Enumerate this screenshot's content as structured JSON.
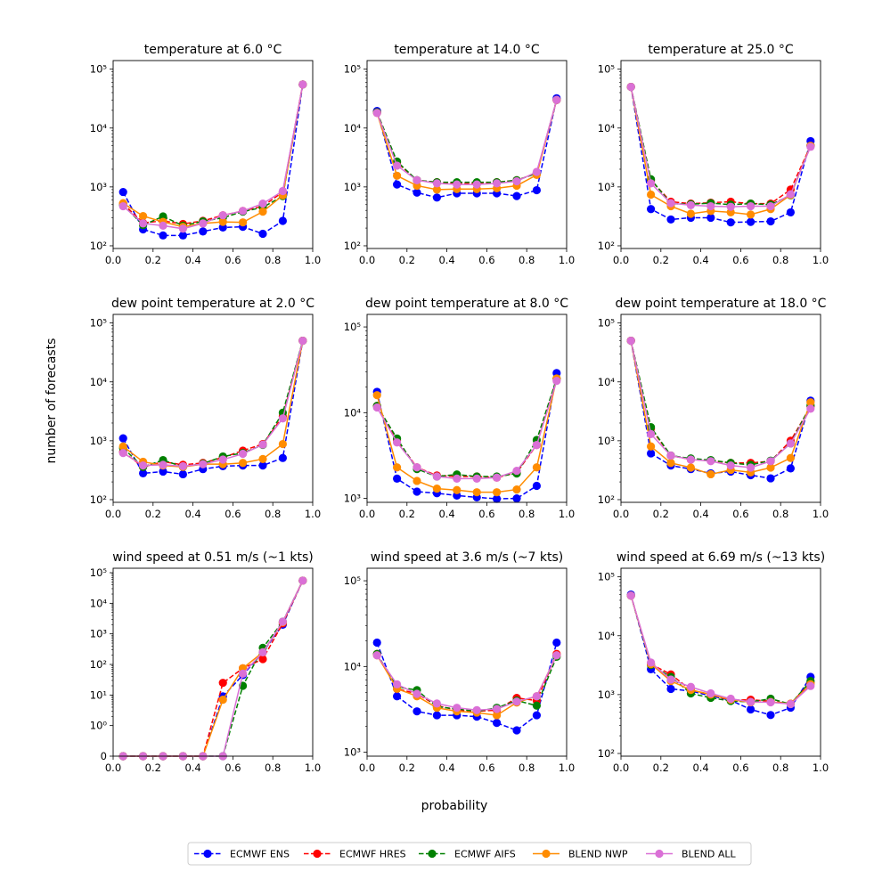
{
  "figure": {
    "xlabel": "probability",
    "ylabel": "number of forecasts"
  },
  "legend": [
    {
      "name": "ECMWF ENS",
      "color": "#0000ff",
      "style": "dashed"
    },
    {
      "name": "ECMWF HRES",
      "color": "#ff0000",
      "style": "dashed"
    },
    {
      "name": "ECMWF AIFS",
      "color": "#008000",
      "style": "dashed"
    },
    {
      "name": "BLEND NWP",
      "color": "#ff8c00",
      "style": "solid"
    },
    {
      "name": "BLEND ALL",
      "color": "#da70d6",
      "style": "solid"
    }
  ],
  "chart_data": [
    {
      "type": "line",
      "title": "temperature at 6.0 °C",
      "yscale": "log",
      "x": [
        0.05,
        0.15,
        0.25,
        0.35,
        0.45,
        0.55,
        0.65,
        0.75,
        0.85,
        0.95
      ],
      "xlim": [
        0.0,
        1.0
      ],
      "xticks": [
        "0.0",
        "0.2",
        "0.4",
        "0.6",
        "0.8",
        "1.0"
      ],
      "ylim": [
        90,
        140000
      ],
      "yticks": [
        100,
        1000,
        10000,
        100000
      ],
      "series": [
        {
          "name": "ECMWF ENS",
          "values": [
            820,
            190,
            150,
            150,
            175,
            205,
            210,
            160,
            265,
            55000
          ]
        },
        {
          "name": "ECMWF HRES",
          "values": [
            520,
            245,
            265,
            235,
            265,
            330,
            390,
            470,
            820,
            55000
          ]
        },
        {
          "name": "ECMWF AIFS",
          "values": [
            490,
            225,
            315,
            220,
            260,
            300,
            380,
            450,
            700,
            55000
          ]
        },
        {
          "name": "BLEND NWP",
          "values": [
            530,
            320,
            255,
            210,
            240,
            255,
            250,
            380,
            720,
            55000
          ]
        },
        {
          "name": "BLEND ALL",
          "values": [
            470,
            240,
            220,
            195,
            240,
            330,
            390,
            520,
            850,
            55000
          ]
        }
      ]
    },
    {
      "type": "line",
      "title": "temperature at 14.0 °C",
      "yscale": "log",
      "x": [
        0.05,
        0.15,
        0.25,
        0.35,
        0.45,
        0.55,
        0.65,
        0.75,
        0.85,
        0.95
      ],
      "xlim": [
        0.0,
        1.0
      ],
      "xticks": [
        "0.0",
        "0.2",
        "0.4",
        "0.6",
        "0.8",
        "1.0"
      ],
      "ylim": [
        90,
        140000
      ],
      "yticks": [
        100,
        1000,
        10000,
        100000
      ],
      "series": [
        {
          "name": "ECMWF ENS",
          "values": [
            19500,
            1100,
            800,
            660,
            780,
            780,
            780,
            700,
            880,
            32000
          ]
        },
        {
          "name": "ECMWF HRES",
          "values": [
            18500,
            2600,
            1300,
            1200,
            1150,
            1150,
            1200,
            1300,
            1700,
            30000
          ]
        },
        {
          "name": "ECMWF AIFS",
          "values": [
            18500,
            2700,
            1300,
            1200,
            1200,
            1200,
            1200,
            1300,
            1700,
            30000
          ]
        },
        {
          "name": "BLEND NWP",
          "values": [
            18000,
            1550,
            1050,
            900,
            920,
            920,
            950,
            1050,
            1600,
            30000
          ]
        },
        {
          "name": "BLEND ALL",
          "values": [
            18000,
            2300,
            1300,
            1150,
            1100,
            1100,
            1150,
            1250,
            1800,
            30000
          ]
        }
      ]
    },
    {
      "type": "line",
      "title": "temperature at 25.0 °C",
      "yscale": "log",
      "x": [
        0.05,
        0.15,
        0.25,
        0.35,
        0.45,
        0.55,
        0.65,
        0.75,
        0.85,
        0.95
      ],
      "xlim": [
        0.0,
        1.0
      ],
      "xticks": [
        "0.0",
        "0.2",
        "0.4",
        "0.6",
        "0.8",
        "1.0"
      ],
      "ylim": [
        90,
        140000
      ],
      "yticks": [
        100,
        1000,
        10000,
        100000
      ],
      "series": [
        {
          "name": "ECMWF ENS",
          "values": [
            50000,
            420,
            280,
            300,
            300,
            250,
            255,
            260,
            370,
            6000
          ]
        },
        {
          "name": "ECMWF HRES",
          "values": [
            50000,
            1300,
            560,
            520,
            540,
            560,
            520,
            520,
            900,
            5000
          ]
        },
        {
          "name": "ECMWF AIFS",
          "values": [
            50000,
            1350,
            520,
            510,
            530,
            500,
            520,
            500,
            720,
            5000
          ]
        },
        {
          "name": "BLEND NWP",
          "values": [
            50000,
            740,
            470,
            350,
            390,
            370,
            340,
            420,
            730,
            5000
          ]
        },
        {
          "name": "BLEND ALL",
          "values": [
            50000,
            1150,
            530,
            490,
            470,
            460,
            470,
            470,
            750,
            4800
          ]
        }
      ]
    },
    {
      "type": "line",
      "title": "dew point temperature at 2.0 °C",
      "yscale": "log",
      "x": [
        0.05,
        0.15,
        0.25,
        0.35,
        0.45,
        0.55,
        0.65,
        0.75,
        0.85,
        0.95
      ],
      "xlim": [
        0.0,
        1.0
      ],
      "xticks": [
        "0.0",
        "0.2",
        "0.4",
        "0.6",
        "0.8",
        "1.0"
      ],
      "ylim": [
        90,
        140000
      ],
      "yticks": [
        100,
        1000,
        10000,
        100000
      ],
      "series": [
        {
          "name": "ECMWF ENS",
          "values": [
            1100,
            280,
            300,
            270,
            330,
            370,
            380,
            380,
            510,
            50000
          ]
        },
        {
          "name": "ECMWF HRES",
          "values": [
            650,
            360,
            440,
            390,
            420,
            520,
            680,
            880,
            2600,
            50000
          ]
        },
        {
          "name": "ECMWF AIFS",
          "values": [
            750,
            360,
            470,
            360,
            410,
            540,
            620,
            850,
            3000,
            50000
          ]
        },
        {
          "name": "BLEND NWP",
          "values": [
            800,
            440,
            380,
            360,
            400,
            400,
            420,
            490,
            880,
            50000
          ]
        },
        {
          "name": "BLEND ALL",
          "values": [
            620,
            380,
            390,
            370,
            400,
            480,
            600,
            860,
            2400,
            50000
          ]
        }
      ]
    },
    {
      "type": "line",
      "title": "dew point temperature at 8.0 °C",
      "yscale": "log",
      "x": [
        0.05,
        0.15,
        0.25,
        0.35,
        0.45,
        0.55,
        0.65,
        0.75,
        0.85,
        0.95
      ],
      "xlim": [
        0.0,
        1.0
      ],
      "xticks": [
        "0.0",
        "0.2",
        "0.4",
        "0.6",
        "0.8",
        "1.0"
      ],
      "ylim": [
        900,
        140000
      ],
      "yticks": [
        1000,
        10000,
        100000
      ],
      "series": [
        {
          "name": "ECMWF ENS",
          "values": [
            17500,
            1700,
            1200,
            1150,
            1080,
            1030,
            990,
            1000,
            1400,
            29000
          ]
        },
        {
          "name": "ECMWF HRES",
          "values": [
            12000,
            4800,
            2300,
            1850,
            1800,
            1800,
            1750,
            2000,
            4200,
            25000
          ]
        },
        {
          "name": "ECMWF AIFS",
          "values": [
            12000,
            5000,
            2200,
            1800,
            1900,
            1800,
            1800,
            1950,
            4800,
            25000
          ]
        },
        {
          "name": "BLEND NWP",
          "values": [
            16000,
            2300,
            1600,
            1300,
            1250,
            1180,
            1180,
            1270,
            2300,
            25000
          ]
        },
        {
          "name": "BLEND ALL",
          "values": [
            11500,
            4500,
            2300,
            1800,
            1700,
            1700,
            1750,
            2100,
            4200,
            23500
          ]
        }
      ]
    },
    {
      "type": "line",
      "title": "dew point temperature at 18.0 °C",
      "yscale": "log",
      "x": [
        0.05,
        0.15,
        0.25,
        0.35,
        0.45,
        0.55,
        0.65,
        0.75,
        0.85,
        0.95
      ],
      "xlim": [
        0.0,
        1.0
      ],
      "xticks": [
        "0.0",
        "0.2",
        "0.4",
        "0.6",
        "0.8",
        "1.0"
      ],
      "ylim": [
        90,
        140000
      ],
      "yticks": [
        100,
        1000,
        10000,
        100000
      ],
      "series": [
        {
          "name": "ECMWF ENS",
          "values": [
            50000,
            610,
            380,
            330,
            280,
            300,
            260,
            230,
            340,
            4800
          ]
        },
        {
          "name": "ECMWF HRES",
          "values": [
            50000,
            1600,
            560,
            480,
            460,
            420,
            420,
            450,
            1000,
            3800
          ]
        },
        {
          "name": "ECMWF AIFS",
          "values": [
            50000,
            1700,
            560,
            500,
            470,
            420,
            390,
            460,
            900,
            4000
          ]
        },
        {
          "name": "BLEND NWP",
          "values": [
            50000,
            800,
            420,
            350,
            270,
            320,
            290,
            350,
            510,
            4500
          ]
        },
        {
          "name": "BLEND ALL",
          "values": [
            50000,
            1300,
            560,
            480,
            450,
            380,
            350,
            450,
            900,
            3500
          ]
        }
      ]
    },
    {
      "type": "line",
      "title": "wind speed at 0.51 m/s (~1 kts)",
      "yscale": "symlog",
      "x": [
        0.05,
        0.15,
        0.25,
        0.35,
        0.45,
        0.55,
        0.65,
        0.75,
        0.85,
        0.95
      ],
      "xlim": [
        0.0,
        1.0
      ],
      "xticks": [
        "0.0",
        "0.2",
        "0.4",
        "0.6",
        "0.8",
        "1.0"
      ],
      "ylim": [
        0,
        140000
      ],
      "yticks": [
        0,
        1,
        10,
        100,
        1000,
        10000,
        100000
      ],
      "series": [
        {
          "name": "ECMWF ENS",
          "values": [
            0,
            0,
            0,
            0,
            0,
            9,
            45,
            250,
            2000,
            55000
          ]
        },
        {
          "name": "ECMWF HRES",
          "values": [
            0,
            0,
            0,
            0,
            0,
            25,
            75,
            150,
            2200,
            55000
          ]
        },
        {
          "name": "ECMWF AIFS",
          "values": [
            0,
            0,
            0,
            0,
            0,
            0,
            20,
            350,
            2500,
            55000
          ]
        },
        {
          "name": "BLEND NWP",
          "values": [
            0,
            0,
            0,
            0,
            0,
            7,
            75,
            250,
            2400,
            55000
          ]
        },
        {
          "name": "BLEND ALL",
          "values": [
            0,
            0,
            0,
            0,
            0,
            0,
            50,
            250,
            2500,
            55000
          ]
        }
      ]
    },
    {
      "type": "line",
      "title": "wind speed at 3.6 m/s (~7 kts)",
      "yscale": "log",
      "x": [
        0.05,
        0.15,
        0.25,
        0.35,
        0.45,
        0.55,
        0.65,
        0.75,
        0.85,
        0.95
      ],
      "xlim": [
        0.0,
        1.0
      ],
      "xticks": [
        "0.0",
        "0.2",
        "0.4",
        "0.6",
        "0.8",
        "1.0"
      ],
      "ylim": [
        900,
        140000
      ],
      "yticks": [
        1000,
        10000,
        100000
      ],
      "series": [
        {
          "name": "ECMWF ENS",
          "values": [
            19000,
            4500,
            3000,
            2700,
            2700,
            2600,
            2200,
            1800,
            2700,
            19000
          ]
        },
        {
          "name": "ECMWF HRES",
          "values": [
            14000,
            5500,
            4800,
            3500,
            3100,
            3000,
            3100,
            4300,
            4000,
            14000
          ]
        },
        {
          "name": "ECMWF AIFS",
          "values": [
            14000,
            5800,
            5300,
            3400,
            3200,
            3000,
            3300,
            4000,
            3500,
            13000
          ]
        },
        {
          "name": "BLEND NWP",
          "values": [
            13500,
            5500,
            4500,
            3300,
            3000,
            2900,
            2700,
            3800,
            4500,
            13500
          ]
        },
        {
          "name": "BLEND ALL",
          "values": [
            13500,
            6200,
            4800,
            3700,
            3300,
            3100,
            3200,
            3900,
            4500,
            13500
          ]
        }
      ]
    },
    {
      "type": "line",
      "title": "wind speed at 6.69 m/s (~13 kts)",
      "yscale": "log",
      "x": [
        0.05,
        0.15,
        0.25,
        0.35,
        0.45,
        0.55,
        0.65,
        0.75,
        0.85,
        0.95
      ],
      "xlim": [
        0.0,
        1.0
      ],
      "xticks": [
        "0.0",
        "0.2",
        "0.4",
        "0.6",
        "0.8",
        "1.0"
      ],
      "ylim": [
        90,
        140000
      ],
      "yticks": [
        100,
        1000,
        10000,
        100000
      ],
      "series": [
        {
          "name": "ECMWF ENS",
          "values": [
            50000,
            2700,
            1250,
            1150,
            950,
            800,
            560,
            450,
            600,
            2000
          ]
        },
        {
          "name": "ECMWF HRES",
          "values": [
            48000,
            3300,
            2200,
            1200,
            1000,
            800,
            820,
            770,
            700,
            1600
          ]
        },
        {
          "name": "ECMWF AIFS",
          "values": [
            48000,
            3200,
            2000,
            1050,
            880,
            780,
            750,
            850,
            690,
            1700
          ]
        },
        {
          "name": "BLEND NWP",
          "values": [
            48000,
            3300,
            1700,
            1200,
            1000,
            820,
            740,
            750,
            700,
            1500
          ]
        },
        {
          "name": "BLEND ALL",
          "values": [
            48000,
            3500,
            1800,
            1350,
            1050,
            850,
            750,
            740,
            690,
            1400
          ]
        }
      ]
    }
  ]
}
